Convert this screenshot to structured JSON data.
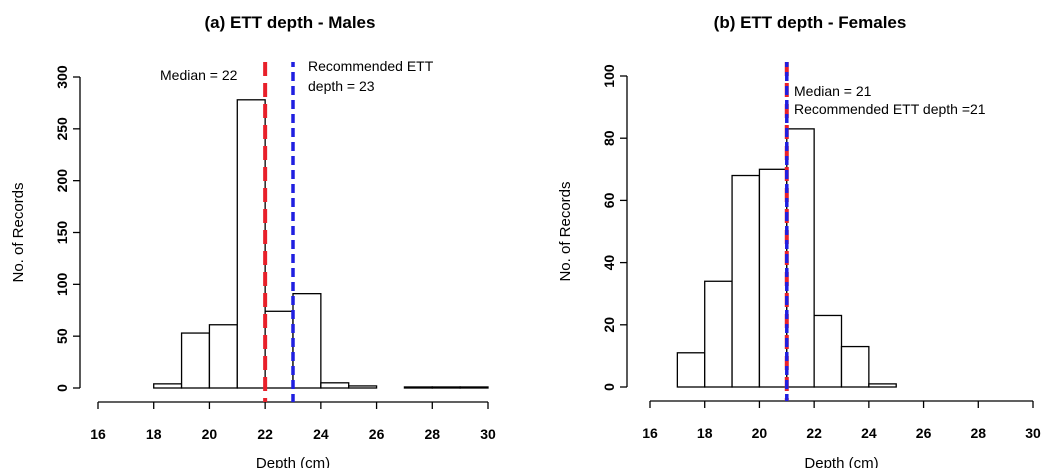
{
  "chart_data": [
    {
      "type": "bar",
      "title": "(a) ETT depth - Males",
      "xlabel": "Depth (cm)",
      "ylabel": "No. of Records",
      "xlim": [
        16,
        30
      ],
      "ylim": [
        0,
        300
      ],
      "x_ticks": [
        16,
        18,
        20,
        22,
        24,
        26,
        28,
        30
      ],
      "y_ticks": [
        0,
        50,
        100,
        150,
        200,
        250,
        300
      ],
      "bins": [
        {
          "start": 18,
          "end": 19,
          "value": 4
        },
        {
          "start": 19,
          "end": 20,
          "value": 53
        },
        {
          "start": 20,
          "end": 21,
          "value": 61
        },
        {
          "start": 21,
          "end": 22,
          "value": 278
        },
        {
          "start": 22,
          "end": 23,
          "value": 74
        },
        {
          "start": 23,
          "end": 24,
          "value": 91
        },
        {
          "start": 24,
          "end": 25,
          "value": 5
        },
        {
          "start": 25,
          "end": 26,
          "value": 2
        },
        {
          "start": 26,
          "end": 27,
          "value": 0
        },
        {
          "start": 27,
          "end": 28,
          "value": 1
        },
        {
          "start": 28,
          "end": 29,
          "value": 1
        },
        {
          "start": 29,
          "end": 30,
          "value": 1
        }
      ],
      "reference_lines": [
        {
          "x": 22,
          "color": "#e8202a"
        },
        {
          "x": 23,
          "color": "#1f1fe0"
        }
      ],
      "annotations": [
        {
          "lines": [
            "Median = 22"
          ]
        },
        {
          "lines": [
            "Recommended ETT",
            "depth = 23"
          ]
        }
      ]
    },
    {
      "type": "bar",
      "title": "(b) ETT depth - Females",
      "xlabel": "Depth (cm)",
      "ylabel": "No. of Records",
      "xlim": [
        16,
        30
      ],
      "ylim": [
        0,
        100
      ],
      "x_ticks": [
        16,
        18,
        20,
        22,
        24,
        26,
        28,
        30
      ],
      "y_ticks": [
        0,
        20,
        40,
        60,
        80,
        100
      ],
      "bins": [
        {
          "start": 17,
          "end": 18,
          "value": 11
        },
        {
          "start": 18,
          "end": 19,
          "value": 34
        },
        {
          "start": 19,
          "end": 20,
          "value": 68
        },
        {
          "start": 20,
          "end": 21,
          "value": 70
        },
        {
          "start": 21,
          "end": 22,
          "value": 83
        },
        {
          "start": 22,
          "end": 23,
          "value": 23
        },
        {
          "start": 23,
          "end": 24,
          "value": 13
        },
        {
          "start": 24,
          "end": 25,
          "value": 1
        }
      ],
      "reference_lines": [
        {
          "x": 21,
          "color": "#e8202a"
        },
        {
          "x": 21,
          "color": "#1f1fe0"
        }
      ],
      "annotations": [
        {
          "lines": [
            "Median = 21",
            "Recommended ETT depth =21"
          ]
        }
      ]
    }
  ]
}
